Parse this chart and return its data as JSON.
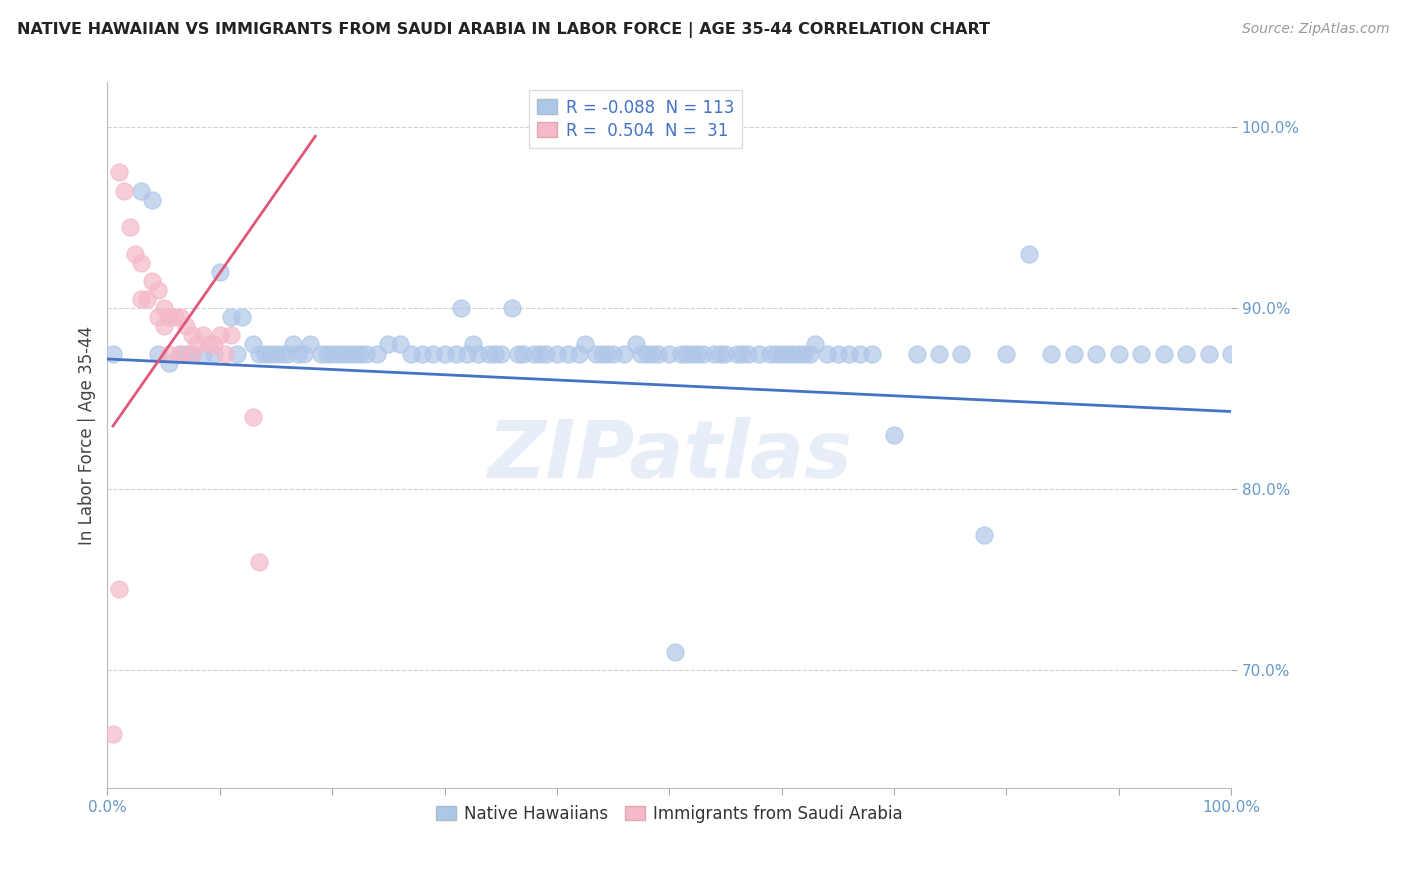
{
  "title": "NATIVE HAWAIIAN VS IMMIGRANTS FROM SAUDI ARABIA IN LABOR FORCE | AGE 35-44 CORRELATION CHART",
  "source": "Source: ZipAtlas.com",
  "ylabel": "In Labor Force | Age 35-44",
  "y_ticks": [
    0.7,
    0.8,
    0.9,
    1.0
  ],
  "y_tick_labels": [
    "70.0%",
    "80.0%",
    "90.0%",
    "100.0%"
  ],
  "xlim": [
    0.0,
    1.0
  ],
  "ylim": [
    0.635,
    1.025
  ],
  "blue_R": -0.088,
  "blue_N": 113,
  "pink_R": 0.504,
  "pink_N": 31,
  "blue_color": "#aec6e8",
  "pink_color": "#f4b8c8",
  "blue_edge_color": "#7aaad0",
  "pink_edge_color": "#e090a0",
  "blue_line_color": "#4472c4",
  "pink_line_color": "#e05878",
  "legend_blue_label": "Native Hawaiians",
  "legend_pink_label": "Immigrants from Saudi Arabia",
  "watermark": "ZIPatlas",
  "blue_trend_x0": 0.0,
  "blue_trend_y0": 0.872,
  "blue_trend_x1": 1.0,
  "blue_trend_y1": 0.843,
  "pink_trend_x0": 0.005,
  "pink_trend_y0": 0.835,
  "pink_trend_x1": 0.185,
  "pink_trend_y1": 0.995,
  "blue_x": [
    0.005,
    0.03,
    0.04,
    0.045,
    0.055,
    0.065,
    0.07,
    0.075,
    0.085,
    0.095,
    0.1,
    0.11,
    0.115,
    0.12,
    0.13,
    0.135,
    0.14,
    0.145,
    0.15,
    0.155,
    0.16,
    0.165,
    0.17,
    0.175,
    0.18,
    0.19,
    0.195,
    0.2,
    0.205,
    0.21,
    0.215,
    0.22,
    0.225,
    0.23,
    0.24,
    0.25,
    0.26,
    0.27,
    0.28,
    0.29,
    0.3,
    0.31,
    0.315,
    0.32,
    0.325,
    0.33,
    0.34,
    0.345,
    0.35,
    0.36,
    0.365,
    0.37,
    0.38,
    0.385,
    0.39,
    0.4,
    0.41,
    0.42,
    0.425,
    0.435,
    0.44,
    0.445,
    0.45,
    0.46,
    0.47,
    0.475,
    0.48,
    0.485,
    0.49,
    0.5,
    0.505,
    0.51,
    0.515,
    0.52,
    0.525,
    0.53,
    0.54,
    0.545,
    0.55,
    0.56,
    0.565,
    0.57,
    0.58,
    0.59,
    0.595,
    0.6,
    0.605,
    0.61,
    0.615,
    0.62,
    0.625,
    0.63,
    0.64,
    0.65,
    0.66,
    0.67,
    0.68,
    0.7,
    0.72,
    0.74,
    0.76,
    0.78,
    0.8,
    0.82,
    0.84,
    0.86,
    0.88,
    0.9,
    0.92,
    0.94,
    0.96,
    0.98,
    1.0
  ],
  "blue_y": [
    0.875,
    0.965,
    0.96,
    0.875,
    0.87,
    0.875,
    0.875,
    0.875,
    0.875,
    0.875,
    0.92,
    0.895,
    0.875,
    0.895,
    0.88,
    0.875,
    0.875,
    0.875,
    0.875,
    0.875,
    0.875,
    0.88,
    0.875,
    0.875,
    0.88,
    0.875,
    0.875,
    0.875,
    0.875,
    0.875,
    0.875,
    0.875,
    0.875,
    0.875,
    0.875,
    0.88,
    0.88,
    0.875,
    0.875,
    0.875,
    0.875,
    0.875,
    0.9,
    0.875,
    0.88,
    0.875,
    0.875,
    0.875,
    0.875,
    0.9,
    0.875,
    0.875,
    0.875,
    0.875,
    0.875,
    0.875,
    0.875,
    0.875,
    0.88,
    0.875,
    0.875,
    0.875,
    0.875,
    0.875,
    0.88,
    0.875,
    0.875,
    0.875,
    0.875,
    0.875,
    0.71,
    0.875,
    0.875,
    0.875,
    0.875,
    0.875,
    0.875,
    0.875,
    0.875,
    0.875,
    0.875,
    0.875,
    0.875,
    0.875,
    0.875,
    0.875,
    0.875,
    0.875,
    0.875,
    0.875,
    0.875,
    0.88,
    0.875,
    0.875,
    0.875,
    0.875,
    0.875,
    0.83,
    0.875,
    0.875,
    0.875,
    0.775,
    0.875,
    0.93,
    0.875,
    0.875,
    0.875,
    0.875,
    0.875,
    0.875,
    0.875,
    0.875,
    0.875
  ],
  "pink_x": [
    0.005,
    0.01,
    0.015,
    0.02,
    0.025,
    0.03,
    0.03,
    0.035,
    0.04,
    0.045,
    0.045,
    0.05,
    0.05,
    0.055,
    0.055,
    0.06,
    0.065,
    0.065,
    0.07,
    0.075,
    0.075,
    0.08,
    0.085,
    0.09,
    0.095,
    0.1,
    0.105,
    0.11,
    0.13,
    0.135,
    0.01
  ],
  "pink_y": [
    0.665,
    0.975,
    0.965,
    0.945,
    0.93,
    0.925,
    0.905,
    0.905,
    0.915,
    0.91,
    0.895,
    0.9,
    0.89,
    0.895,
    0.875,
    0.895,
    0.895,
    0.875,
    0.89,
    0.885,
    0.875,
    0.88,
    0.885,
    0.88,
    0.88,
    0.885,
    0.875,
    0.885,
    0.84,
    0.76,
    0.745
  ]
}
